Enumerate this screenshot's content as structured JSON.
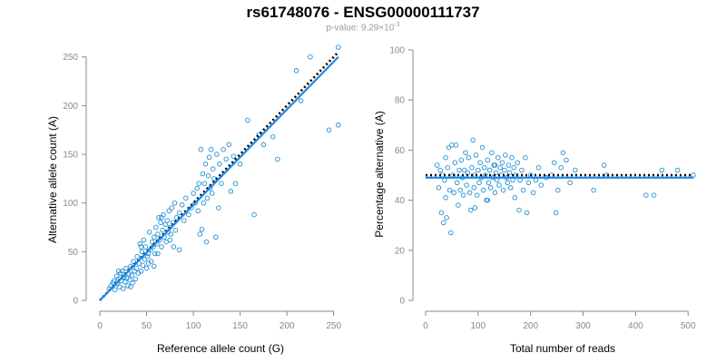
{
  "header": {
    "title": "rs61748076 - ENSG00000111737",
    "subtitle_prefix": "p-value: 9.29×10",
    "subtitle_exponent": "-3"
  },
  "colors": {
    "points": "#1f8fd6",
    "fit_line": "#1e88e5",
    "reference_line": "#000000",
    "axis": "#888888"
  },
  "chart_data": [
    {
      "type": "scatter",
      "title": "",
      "xlabel": "Reference allele count (G)",
      "ylabel": "Alternative allele count (A)",
      "xlim": [
        0,
        260
      ],
      "ylim": [
        0,
        260
      ],
      "xticks": [
        0,
        50,
        100,
        150,
        200,
        250
      ],
      "yticks": [
        0,
        50,
        100,
        150,
        200,
        250
      ],
      "grid": false,
      "fit_line": [
        [
          0,
          0
        ],
        [
          255,
          250
        ]
      ],
      "reference_line": [
        [
          0,
          0
        ],
        [
          255,
          255
        ]
      ],
      "points": [
        [
          10,
          12
        ],
        [
          12,
          15
        ],
        [
          14,
          18
        ],
        [
          15,
          20
        ],
        [
          16,
          11
        ],
        [
          18,
          25
        ],
        [
          19,
          17
        ],
        [
          20,
          22
        ],
        [
          21,
          14
        ],
        [
          22,
          28
        ],
        [
          23,
          20
        ],
        [
          24,
          30
        ],
        [
          25,
          12
        ],
        [
          26,
          24
        ],
        [
          27,
          19
        ],
        [
          28,
          33
        ],
        [
          29,
          23
        ],
        [
          30,
          15
        ],
        [
          31,
          27
        ],
        [
          32,
          21
        ],
        [
          33,
          35
        ],
        [
          34,
          26
        ],
        [
          35,
          18
        ],
        [
          36,
          40
        ],
        [
          37,
          30
        ],
        [
          38,
          22
        ],
        [
          39,
          33
        ],
        [
          40,
          45
        ],
        [
          41,
          28
        ],
        [
          42,
          38
        ],
        [
          43,
          58
        ],
        [
          44,
          30
        ],
        [
          45,
          50
        ],
        [
          46,
          36
        ],
        [
          47,
          62
        ],
        [
          48,
          42
        ],
        [
          49,
          55
        ],
        [
          50,
          33
        ],
        [
          51,
          45
        ],
        [
          52,
          48
        ],
        [
          53,
          70
        ],
        [
          54,
          52
        ],
        [
          55,
          40
        ],
        [
          56,
          60
        ],
        [
          57,
          55
        ],
        [
          58,
          65
        ],
        [
          59,
          48
        ],
        [
          60,
          75
        ],
        [
          61,
          58
        ],
        [
          62,
          68
        ],
        [
          63,
          85
        ],
        [
          64,
          62
        ],
        [
          65,
          80
        ],
        [
          66,
          55
        ],
        [
          67,
          72
        ],
        [
          68,
          88
        ],
        [
          69,
          65
        ],
        [
          70,
          78
        ],
        [
          71,
          60
        ],
        [
          72,
          82
        ],
        [
          73,
          70
        ],
        [
          74,
          92
        ],
        [
          75,
          75
        ],
        [
          76,
          68
        ],
        [
          77,
          95
        ],
        [
          78,
          80
        ],
        [
          79,
          55
        ],
        [
          80,
          100
        ],
        [
          81,
          72
        ],
        [
          82,
          85
        ],
        [
          85,
          90
        ],
        [
          88,
          98
        ],
        [
          90,
          82
        ],
        [
          92,
          105
        ],
        [
          95,
          88
        ],
        [
          98,
          95
        ],
        [
          100,
          110
        ],
        [
          102,
          100
        ],
        [
          104,
          115
        ],
        [
          105,
          92
        ],
        [
          106,
          120
        ],
        [
          107,
          68
        ],
        [
          108,
          155
        ],
        [
          109,
          73
        ],
        [
          110,
          130
        ],
        [
          111,
          100
        ],
        [
          112,
          120
        ],
        [
          113,
          140
        ],
        [
          114,
          60
        ],
        [
          115,
          105
        ],
        [
          116,
          128
        ],
        [
          117,
          147
        ],
        [
          118,
          115
        ],
        [
          119,
          155
        ],
        [
          120,
          110
        ],
        [
          121,
          135
        ],
        [
          122,
          125
        ],
        [
          124,
          65
        ],
        [
          125,
          150
        ],
        [
          127,
          95
        ],
        [
          128,
          140
        ],
        [
          130,
          120
        ],
        [
          132,
          155
        ],
        [
          135,
          145
        ],
        [
          138,
          160
        ],
        [
          140,
          112
        ],
        [
          143,
          148
        ],
        [
          145,
          120
        ],
        [
          150,
          140
        ],
        [
          158,
          185
        ],
        [
          165,
          88
        ],
        [
          170,
          170
        ],
        [
          175,
          160
        ],
        [
          185,
          168
        ],
        [
          190,
          145
        ],
        [
          210,
          236
        ],
        [
          215,
          205
        ],
        [
          225,
          250
        ],
        [
          245,
          175
        ],
        [
          255,
          180
        ],
        [
          255,
          260
        ],
        [
          20,
          30
        ],
        [
          33,
          14
        ],
        [
          44,
          55
        ],
        [
          52,
          38
        ],
        [
          58,
          35
        ],
        [
          62,
          48
        ],
        [
          66,
          85
        ],
        [
          75,
          62
        ],
        [
          85,
          52
        ]
      ]
    },
    {
      "type": "scatter",
      "title": "",
      "xlabel": "Total number of reads",
      "ylabel": "Percentage alternative (A)",
      "xlim": [
        0,
        510
      ],
      "ylim": [
        0,
        100
      ],
      "xticks": [
        0,
        100,
        200,
        300,
        400,
        500
      ],
      "yticks": [
        0,
        20,
        40,
        60,
        80,
        100
      ],
      "grid": false,
      "fit_line": [
        [
          0,
          49
        ],
        [
          510,
          49
        ]
      ],
      "reference_line": [
        [
          0,
          50
        ],
        [
          510,
          50
        ]
      ],
      "points": [
        [
          22,
          54
        ],
        [
          25,
          45
        ],
        [
          28,
          52
        ],
        [
          30,
          35
        ],
        [
          32,
          50
        ],
        [
          34,
          31
        ],
        [
          36,
          48
        ],
        [
          38,
          57
        ],
        [
          40,
          33
        ],
        [
          42,
          53
        ],
        [
          44,
          61
        ],
        [
          46,
          44
        ],
        [
          48,
          27
        ],
        [
          50,
          62
        ],
        [
          52,
          50
        ],
        [
          54,
          43
        ],
        [
          56,
          55
        ],
        [
          58,
          62
        ],
        [
          60,
          47
        ],
        [
          62,
          38
        ],
        [
          64,
          52
        ],
        [
          66,
          44
        ],
        [
          68,
          56
        ],
        [
          70,
          49
        ],
        [
          72,
          42
        ],
        [
          74,
          52
        ],
        [
          76,
          59
        ],
        [
          78,
          46
        ],
        [
          80,
          51
        ],
        [
          82,
          57
        ],
        [
          84,
          43
        ],
        [
          86,
          36
        ],
        [
          88,
          53
        ],
        [
          90,
          64
        ],
        [
          92,
          45
        ],
        [
          94,
          50
        ],
        [
          96,
          58
        ],
        [
          98,
          42
        ],
        [
          100,
          52
        ],
        [
          102,
          47
        ],
        [
          104,
          55
        ],
        [
          106,
          49
        ],
        [
          108,
          61
        ],
        [
          110,
          44
        ],
        [
          112,
          53
        ],
        [
          114,
          50
        ],
        [
          116,
          40
        ],
        [
          118,
          56
        ],
        [
          120,
          47
        ],
        [
          122,
          52
        ],
        [
          124,
          45
        ],
        [
          126,
          59
        ],
        [
          128,
          49
        ],
        [
          130,
          54
        ],
        [
          132,
          43
        ],
        [
          134,
          51
        ],
        [
          136,
          48
        ],
        [
          138,
          57
        ],
        [
          140,
          46
        ],
        [
          142,
          53
        ],
        [
          144,
          50
        ],
        [
          146,
          55
        ],
        [
          148,
          44
        ],
        [
          150,
          52
        ],
        [
          152,
          58
        ],
        [
          154,
          49
        ],
        [
          156,
          47
        ],
        [
          158,
          54
        ],
        [
          160,
          51
        ],
        [
          162,
          45
        ],
        [
          164,
          57
        ],
        [
          166,
          48
        ],
        [
          168,
          53
        ],
        [
          170,
          41
        ],
        [
          172,
          50
        ],
        [
          175,
          55
        ],
        [
          178,
          36
        ],
        [
          180,
          48
        ],
        [
          183,
          52
        ],
        [
          186,
          44
        ],
        [
          190,
          57
        ],
        [
          193,
          35
        ],
        [
          196,
          47
        ],
        [
          200,
          50
        ],
        [
          205,
          43
        ],
        [
          210,
          48
        ],
        [
          215,
          53
        ],
        [
          220,
          46
        ],
        [
          230,
          49
        ],
        [
          240,
          50
        ],
        [
          245,
          55
        ],
        [
          248,
          35
        ],
        [
          252,
          44
        ],
        [
          258,
          53
        ],
        [
          262,
          59
        ],
        [
          268,
          56
        ],
        [
          275,
          47
        ],
        [
          285,
          52
        ],
        [
          320,
          44
        ],
        [
          340,
          54
        ],
        [
          345,
          50
        ],
        [
          420,
          42
        ],
        [
          435,
          42
        ],
        [
          450,
          52
        ],
        [
          480,
          52
        ],
        [
          510,
          50
        ],
        [
          38,
          41
        ],
        [
          118,
          40
        ],
        [
          132,
          54
        ],
        [
          94,
          37
        ]
      ]
    }
  ]
}
